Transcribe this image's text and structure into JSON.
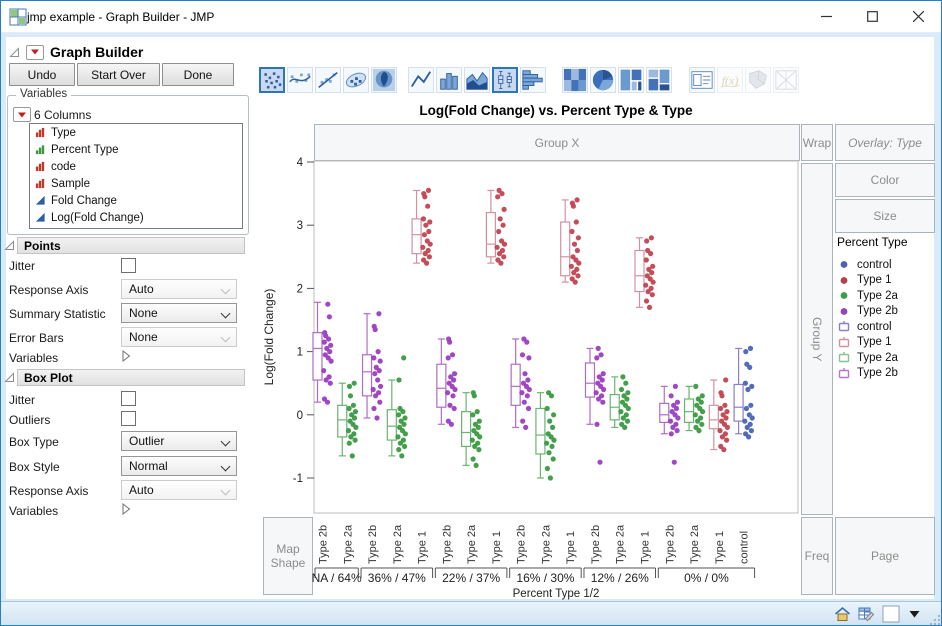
{
  "window": {
    "title": "jmp example - Graph Builder - JMP"
  },
  "outline": {
    "title": "Graph Builder"
  },
  "action_buttons": {
    "undo": "Undo",
    "start_over": "Start Over",
    "done": "Done"
  },
  "element_palette": {
    "icons": [
      {
        "name": "points",
        "selected": true
      },
      {
        "name": "smoother"
      },
      {
        "name": "line-of-fit"
      },
      {
        "name": "ellipse"
      },
      {
        "name": "contour"
      },
      {
        "name": "line"
      },
      {
        "name": "bar"
      },
      {
        "name": "area"
      },
      {
        "name": "box-plot",
        "selected": true
      },
      {
        "name": "histogram"
      },
      {
        "name": "heatmap"
      },
      {
        "name": "pie"
      },
      {
        "name": "treemap"
      },
      {
        "name": "mosaic"
      },
      {
        "name": "caption-box"
      },
      {
        "name": "formula",
        "disabled": true
      },
      {
        "name": "map-shapes",
        "disabled": true
      },
      {
        "name": "parallel",
        "disabled": true
      }
    ]
  },
  "variables_panel": {
    "title": "Variables",
    "columns_label": "6 Columns",
    "columns": [
      {
        "name": "Type",
        "icon": "nominal"
      },
      {
        "name": "Percent Type",
        "icon": "ordinal"
      },
      {
        "name": "code",
        "icon": "nominal"
      },
      {
        "name": "Sample",
        "icon": "nominal"
      },
      {
        "name": "Fold Change",
        "icon": "continuous"
      },
      {
        "name": "Log(Fold Change)",
        "icon": "continuous"
      }
    ]
  },
  "points_panel": {
    "title": "Points",
    "jitter_label": "Jitter",
    "response_axis_label": "Response Axis",
    "response_axis_value": "Auto",
    "summary_statistic_label": "Summary Statistic",
    "summary_statistic_value": "None",
    "error_bars_label": "Error Bars",
    "error_bars_value": "None",
    "variables_label": "Variables"
  },
  "boxplot_panel": {
    "title": "Box Plot",
    "jitter_label": "Jitter",
    "outliers_label": "Outliers",
    "box_type_label": "Box Type",
    "box_type_value": "Outlier",
    "box_style_label": "Box Style",
    "box_style_value": "Normal",
    "response_axis_label": "Response Axis",
    "response_axis_value": "Auto",
    "variables_label": "Variables"
  },
  "drop_zones": {
    "group_x": "Group X",
    "wrap": "Wrap",
    "overlay": "Overlay: Type",
    "color": "Color",
    "size": "Size",
    "group_y": "Group Y",
    "map_shape": "Map Shape",
    "freq": "Freq",
    "page": "Page"
  },
  "legend": {
    "title": "Percent Type",
    "items": [
      {
        "label": "control",
        "marker": "dot",
        "color": "#4a63b5"
      },
      {
        "label": "Type 1",
        "marker": "dot",
        "color": "#b5404a"
      },
      {
        "label": "Type 2a",
        "marker": "dot",
        "color": "#3e9e4e"
      },
      {
        "label": "Type 2b",
        "marker": "dot",
        "color": "#8f46bd"
      },
      {
        "label": "control",
        "marker": "box",
        "color": "#8a7fc8"
      },
      {
        "label": "Type 1",
        "marker": "box",
        "color": "#d291a1"
      },
      {
        "label": "Type 2a",
        "marker": "box",
        "color": "#86c589"
      },
      {
        "label": "Type 2b",
        "marker": "box",
        "color": "#b576cb"
      }
    ]
  },
  "chart_data": {
    "type": "box+scatter",
    "title": "Log(Fold Change) vs. Percent Type & Type",
    "ylabel": "Log(Fold Change)",
    "xlabel": "Percent Type 1/2",
    "yticks": [
      4,
      3,
      2,
      1,
      0,
      -1
    ],
    "ylim": [
      -1.55,
      4.1
    ],
    "legend_position": "right",
    "point_colors": {
      "control": "#4a63b5",
      "Type 1": "#c04550",
      "Type 2a": "#3a9a42",
      "Type 2b": "#9b3ec0"
    },
    "box_colors": {
      "control": "#8a7fc8",
      "Type 1": "#d291a1",
      "Type 2a": "#6ab46d",
      "Type 2b": "#b06cc6"
    },
    "groups": [
      {
        "label": "NA / 64%",
        "clusters": [
          {
            "type": "Type 2b",
            "points": [
              0.2,
              0.25,
              0.5,
              0.55,
              0.6,
              0.7,
              0.85,
              0.9,
              0.95,
              1.0,
              1.05,
              1.1,
              1.15,
              1.2,
              1.25,
              1.3,
              1.55,
              1.75
            ],
            "box": {
              "lo": 0.2,
              "q1": 0.55,
              "med": 1.05,
              "q3": 1.3,
              "hi": 1.78
            }
          },
          {
            "type": "Type 2a",
            "points": [
              -0.65,
              -0.45,
              -0.4,
              -0.35,
              -0.3,
              -0.25,
              -0.2,
              -0.15,
              -0.1,
              -0.05,
              0,
              0.05,
              0.1,
              0.15,
              0.3,
              0.45,
              0.5
            ],
            "box": {
              "lo": -0.65,
              "q1": -0.35,
              "med": -0.08,
              "q3": 0.15,
              "hi": 0.5
            }
          }
        ]
      },
      {
        "label": "36% / 47%",
        "clusters": [
          {
            "type": "Type 2b",
            "points": [
              -0.05,
              0.1,
              0.2,
              0.3,
              0.35,
              0.4,
              0.45,
              0.55,
              0.65,
              0.7,
              0.75,
              0.85,
              0.9,
              1.0,
              1.35,
              1.4,
              1.6
            ],
            "box": {
              "lo": -0.05,
              "q1": 0.3,
              "med": 0.68,
              "q3": 0.95,
              "hi": 1.6
            }
          },
          {
            "type": "Type 2a",
            "points": [
              -0.65,
              -0.55,
              -0.5,
              -0.45,
              -0.4,
              -0.35,
              -0.3,
              -0.25,
              -0.2,
              -0.15,
              -0.1,
              -0.05,
              0,
              0.05,
              0.1,
              0.55,
              0.9
            ],
            "box": {
              "lo": -0.65,
              "q1": -0.4,
              "med": -0.18,
              "q3": 0.08,
              "hi": 0.55
            }
          },
          {
            "type": "Type 1",
            "points": [
              2.4,
              2.45,
              2.5,
              2.55,
              2.6,
              2.65,
              2.7,
              2.75,
              2.85,
              2.9,
              3.0,
              3.05,
              3.1,
              3.3,
              3.45,
              3.5,
              3.55
            ],
            "box": {
              "lo": 2.4,
              "q1": 2.55,
              "med": 2.85,
              "q3": 3.1,
              "hi": 3.55
            }
          }
        ]
      },
      {
        "label": "22% / 37%",
        "clusters": [
          {
            "type": "Type 2b",
            "points": [
              -0.15,
              -0.1,
              0.1,
              0.15,
              0.3,
              0.35,
              0.4,
              0.45,
              0.5,
              0.55,
              0.6,
              0.65,
              0.9,
              0.95,
              1.15,
              1.2
            ],
            "box": {
              "lo": -0.15,
              "q1": 0.12,
              "med": 0.42,
              "q3": 0.8,
              "hi": 1.2
            }
          },
          {
            "type": "Type 2a",
            "points": [
              -0.8,
              -0.7,
              -0.55,
              -0.5,
              -0.45,
              -0.4,
              -0.35,
              -0.3,
              -0.25,
              -0.2,
              -0.15,
              -0.1,
              0,
              0.05,
              0.3,
              0.35
            ],
            "box": {
              "lo": -0.8,
              "q1": -0.5,
              "med": -0.28,
              "q3": 0.05,
              "hi": 0.35
            }
          },
          {
            "type": "Type 1",
            "points": [
              2.4,
              2.45,
              2.5,
              2.55,
              2.6,
              2.65,
              2.7,
              2.75,
              2.9,
              3.0,
              3.1,
              3.25,
              3.45,
              3.5,
              3.55
            ],
            "box": {
              "lo": 2.4,
              "q1": 2.5,
              "med": 2.7,
              "q3": 3.2,
              "hi": 3.55
            }
          }
        ]
      },
      {
        "label": "16% / 30%",
        "clusters": [
          {
            "type": "Type 2b",
            "points": [
              -0.2,
              -0.1,
              0.1,
              0.2,
              0.3,
              0.35,
              0.4,
              0.45,
              0.5,
              0.55,
              0.65,
              0.9,
              0.95,
              1.15,
              1.2
            ],
            "box": {
              "lo": -0.2,
              "q1": 0.15,
              "med": 0.45,
              "q3": 0.8,
              "hi": 1.2
            }
          },
          {
            "type": "Type 2a",
            "points": [
              -1.0,
              -0.85,
              -0.7,
              -0.6,
              -0.5,
              -0.45,
              -0.4,
              -0.35,
              -0.3,
              -0.2,
              -0.1,
              0,
              0.1,
              0.3,
              0.35
            ],
            "box": {
              "lo": -1.0,
              "q1": -0.62,
              "med": -0.32,
              "q3": 0.1,
              "hi": 0.35
            }
          },
          {
            "type": "Type 1",
            "points": [
              2.1,
              2.15,
              2.2,
              2.25,
              2.3,
              2.35,
              2.4,
              2.45,
              2.5,
              2.6,
              2.7,
              2.8,
              2.9,
              3.05,
              3.3,
              3.35,
              3.4
            ],
            "box": {
              "lo": 2.1,
              "q1": 2.2,
              "med": 2.5,
              "q3": 3.05,
              "hi": 3.4
            }
          }
        ]
      },
      {
        "label": "12% / 26%",
        "clusters": [
          {
            "type": "Type 2b",
            "points": [
              -0.75,
              -0.15,
              0.2,
              0.25,
              0.3,
              0.35,
              0.4,
              0.45,
              0.5,
              0.55,
              0.6,
              0.65,
              0.9,
              0.95,
              1.05
            ],
            "box": {
              "lo": -0.15,
              "q1": 0.28,
              "med": 0.5,
              "q3": 0.82,
              "hi": 1.05
            }
          },
          {
            "type": "Type 2a",
            "points": [
              -0.2,
              -0.15,
              -0.1,
              -0.05,
              0,
              0.05,
              0.1,
              0.15,
              0.2,
              0.25,
              0.3,
              0.35,
              0.4,
              0.5,
              0.6
            ],
            "box": {
              "lo": -0.2,
              "q1": -0.08,
              "med": 0.12,
              "q3": 0.32,
              "hi": 0.6
            }
          },
          {
            "type": "Type 1",
            "points": [
              1.7,
              1.8,
              1.9,
              1.95,
              2.0,
              2.05,
              2.1,
              2.15,
              2.2,
              2.25,
              2.3,
              2.35,
              2.45,
              2.55,
              2.6,
              2.75,
              2.8
            ],
            "box": {
              "lo": 1.7,
              "q1": 1.95,
              "med": 2.2,
              "q3": 2.6,
              "hi": 2.8
            }
          }
        ]
      },
      {
        "label": "0% / 0%",
        "clusters": [
          {
            "type": "Type 2b",
            "points": [
              -0.75,
              -0.3,
              -0.25,
              -0.2,
              -0.15,
              -0.1,
              -0.05,
              0,
              0.05,
              0.1,
              0.15,
              0.2,
              0.3,
              0.45
            ],
            "box": {
              "lo": -0.3,
              "q1": -0.12,
              "med": 0.0,
              "q3": 0.18,
              "hi": 0.45
            }
          },
          {
            "type": "Type 2a",
            "points": [
              -0.25,
              -0.2,
              -0.15,
              -0.1,
              -0.05,
              0,
              0.05,
              0.1,
              0.15,
              0.2,
              0.25,
              0.3,
              0.45
            ],
            "box": {
              "lo": -0.25,
              "q1": -0.12,
              "med": 0.05,
              "q3": 0.25,
              "hi": 0.45
            }
          },
          {
            "type": "Type 1",
            "points": [
              -0.55,
              -0.5,
              -0.4,
              -0.35,
              -0.3,
              -0.25,
              -0.2,
              -0.15,
              -0.1,
              -0.05,
              0,
              0.05,
              0.1,
              0.15,
              0.3,
              0.35,
              0.55
            ],
            "box": {
              "lo": -0.55,
              "q1": -0.22,
              "med": -0.08,
              "q3": 0.15,
              "hi": 0.55
            }
          },
          {
            "type": "control",
            "points": [
              -0.35,
              -0.3,
              -0.25,
              -0.2,
              -0.15,
              -0.1,
              -0.05,
              0,
              0.1,
              0.15,
              0.4,
              0.45,
              0.5,
              0.75,
              0.8,
              1.0,
              1.05
            ],
            "box": {
              "lo": -0.3,
              "q1": -0.1,
              "med": 0.12,
              "q3": 0.48,
              "hi": 1.05
            }
          }
        ]
      }
    ]
  },
  "status_bar": {
    "icons": [
      "home",
      "data-table",
      "window-box",
      "dropdown-arrow"
    ]
  }
}
